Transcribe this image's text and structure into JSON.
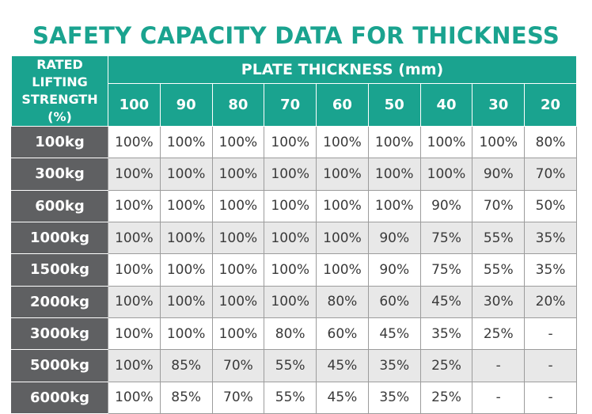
{
  "title": "SAFETY CAPACITY DATA FOR THICKNESS",
  "table": {
    "corner_header": [
      "RATED",
      "LIFTING",
      "STRENGTH",
      "(%)"
    ],
    "span_header": "PLATE THICKNESS (mm)",
    "columns": [
      "100",
      "90",
      "80",
      "70",
      "60",
      "50",
      "40",
      "30",
      "20"
    ],
    "rows": [
      {
        "label": "100kg",
        "values": [
          "100%",
          "100%",
          "100%",
          "100%",
          "100%",
          "100%",
          "100%",
          "100%",
          "80%"
        ]
      },
      {
        "label": "300kg",
        "values": [
          "100%",
          "100%",
          "100%",
          "100%",
          "100%",
          "100%",
          "100%",
          "90%",
          "70%"
        ]
      },
      {
        "label": "600kg",
        "values": [
          "100%",
          "100%",
          "100%",
          "100%",
          "100%",
          "100%",
          "90%",
          "70%",
          "50%"
        ]
      },
      {
        "label": "1000kg",
        "values": [
          "100%",
          "100%",
          "100%",
          "100%",
          "100%",
          "90%",
          "75%",
          "55%",
          "35%"
        ]
      },
      {
        "label": "1500kg",
        "values": [
          "100%",
          "100%",
          "100%",
          "100%",
          "100%",
          "90%",
          "75%",
          "55%",
          "35%"
        ]
      },
      {
        "label": "2000kg",
        "values": [
          "100%",
          "100%",
          "100%",
          "100%",
          "80%",
          "60%",
          "45%",
          "30%",
          "20%"
        ]
      },
      {
        "label": "3000kg",
        "values": [
          "100%",
          "100%",
          "100%",
          "80%",
          "60%",
          "45%",
          "35%",
          "25%",
          "-"
        ]
      },
      {
        "label": "5000kg",
        "values": [
          "100%",
          "85%",
          "70%",
          "55%",
          "45%",
          "35%",
          "25%",
          "-",
          "-"
        ]
      },
      {
        "label": "6000kg",
        "values": [
          "100%",
          "85%",
          "70%",
          "55%",
          "45%",
          "35%",
          "25%",
          "-",
          "-"
        ]
      }
    ]
  },
  "colors": {
    "accent": "#1aa38f",
    "row_header_bg": "#5f6062",
    "stripe": "#e8e8e8"
  }
}
